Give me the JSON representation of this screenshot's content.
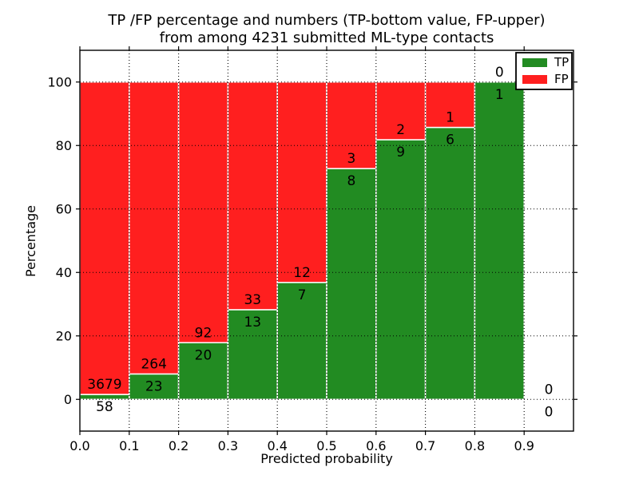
{
  "chart_data": {
    "type": "bar",
    "stacked": true,
    "title": "TP /FP percentage and numbers (TP-bottom value, FP-upper)\nfrom among 4231 submitted ML-type contacts",
    "title_line1": "TP /FP percentage and numbers (TP-bottom value, FP-upper)",
    "title_line2": "from among 4231 submitted ML-type contacts",
    "xlabel": "Predicted probability",
    "ylabel": "Percentage",
    "total_contacts": 4231,
    "xlim": [
      0.0,
      1.0
    ],
    "ylim": [
      -10,
      110
    ],
    "x_ticks": [
      0.0,
      0.1,
      0.2,
      0.3,
      0.4,
      0.5,
      0.6,
      0.7,
      0.8,
      0.9
    ],
    "x_tick_labels": [
      "0.0",
      "0.1",
      "0.2",
      "0.3",
      "0.4",
      "0.5",
      "0.6",
      "0.7",
      "0.8",
      "0.9"
    ],
    "y_ticks": [
      0,
      20,
      40,
      60,
      80,
      100
    ],
    "y_tick_labels": [
      "0",
      "20",
      "40",
      "60",
      "80",
      "100"
    ],
    "grid": true,
    "grid_style": "dotted",
    "legend_position": "upper right",
    "legend": [
      {
        "label": "TP",
        "color": "#228b22"
      },
      {
        "label": "FP",
        "color": "#ff1f1f"
      }
    ],
    "colors": {
      "tp": "#228b22",
      "fp": "#ff1f1f",
      "bar_edge": "#ffffff",
      "grid": "#000000",
      "frame": "#000000"
    },
    "bins": [
      {
        "range": [
          0.0,
          0.1
        ],
        "tp": 58,
        "fp": 3679,
        "tp_pct": 1.55,
        "fp_pct": 98.45
      },
      {
        "range": [
          0.1,
          0.2
        ],
        "tp": 23,
        "fp": 264,
        "tp_pct": 8.01,
        "fp_pct": 91.99
      },
      {
        "range": [
          0.2,
          0.3
        ],
        "tp": 20,
        "fp": 92,
        "tp_pct": 17.86,
        "fp_pct": 82.14
      },
      {
        "range": [
          0.3,
          0.4
        ],
        "tp": 13,
        "fp": 33,
        "tp_pct": 28.26,
        "fp_pct": 71.74
      },
      {
        "range": [
          0.4,
          0.5
        ],
        "tp": 7,
        "fp": 12,
        "tp_pct": 36.84,
        "fp_pct": 63.16
      },
      {
        "range": [
          0.5,
          0.6
        ],
        "tp": 8,
        "fp": 3,
        "tp_pct": 72.73,
        "fp_pct": 27.27
      },
      {
        "range": [
          0.6,
          0.7
        ],
        "tp": 9,
        "fp": 2,
        "tp_pct": 81.82,
        "fp_pct": 18.18
      },
      {
        "range": [
          0.7,
          0.8
        ],
        "tp": 6,
        "fp": 1,
        "tp_pct": 85.71,
        "fp_pct": 14.29
      },
      {
        "range": [
          0.8,
          0.9
        ],
        "tp": 1,
        "fp": 0,
        "tp_pct": 100.0,
        "fp_pct": 0.0
      },
      {
        "range": [
          0.9,
          1.0
        ],
        "tp": 0,
        "fp": 0,
        "tp_pct": null,
        "fp_pct": null
      }
    ]
  }
}
